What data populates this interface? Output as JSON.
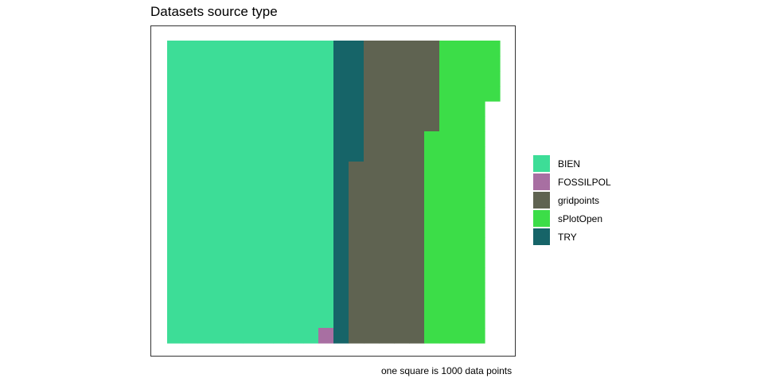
{
  "chart_data": {
    "type": "waffle",
    "title": "Datasets source type",
    "caption": "one square is 1000 data points",
    "grid": {
      "columns": 22,
      "rows": 20
    },
    "fill_order": "column-wise, top to bottom, left to right",
    "legend_position": "right",
    "categories": [
      "BIEN",
      "FOSSILPOL",
      "gridpoints",
      "sPlotOpen",
      "TRY"
    ],
    "fill_sequence": [
      "BIEN",
      "FOSSILPOL",
      "TRY",
      "gridpoints",
      "sPlotOpen"
    ],
    "colors": {
      "BIEN": "#3DDD97",
      "FOSSILPOL": "#A86FA2",
      "gridpoints": "#5F6351",
      "sPlotOpen": "#3CDD48",
      "TRY": "#166468"
    },
    "values": {
      "BIEN": 219,
      "FOSSILPOL": 1,
      "TRY": 28,
      "gridpoints": 98,
      "sPlotOpen": 78
    },
    "unit": "1000 data points per square"
  }
}
